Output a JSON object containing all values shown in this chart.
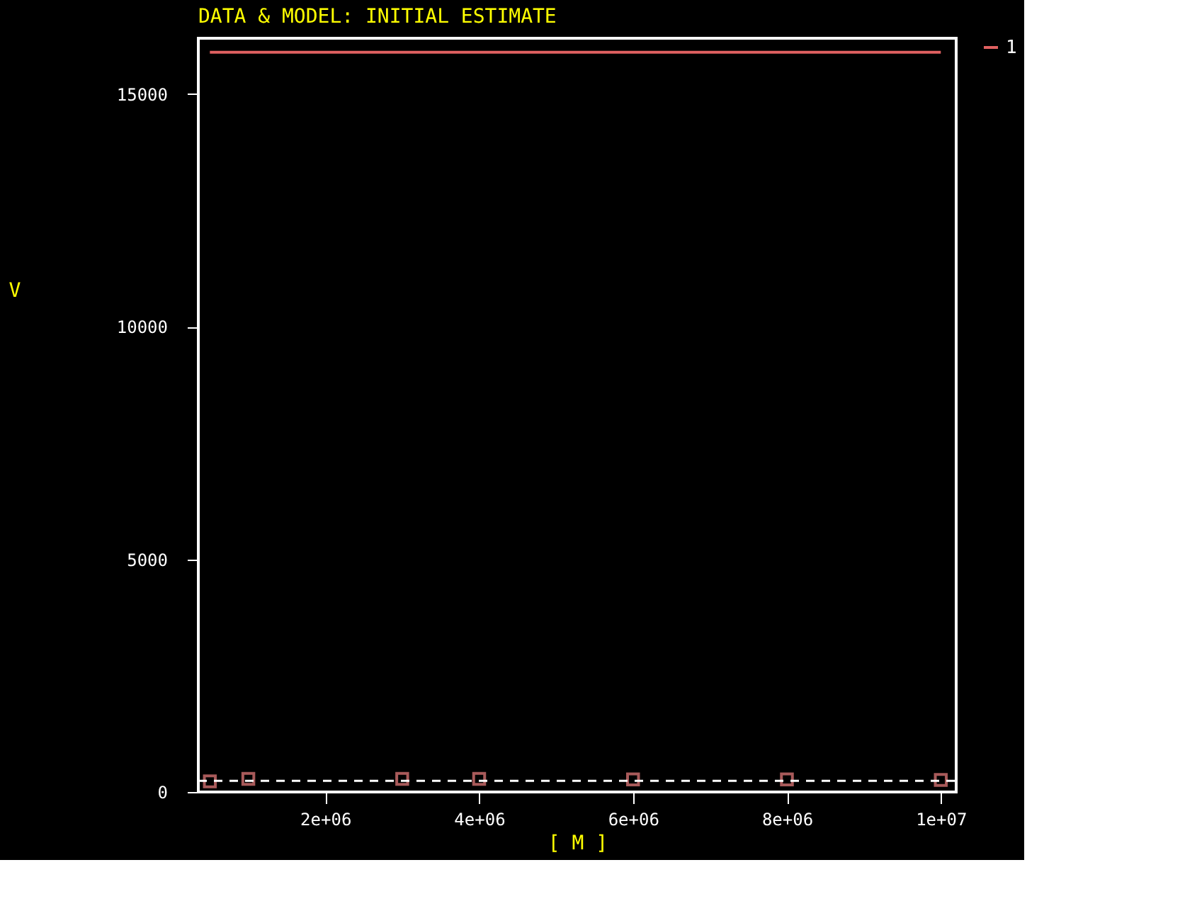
{
  "chart_data": {
    "type": "scatter",
    "title": "DATA & MODEL: INITIAL ESTIMATE",
    "xlabel": "[ M ]",
    "ylabel": "V",
    "xlim": [
      350000,
      10200000
    ],
    "ylim": [
      0,
      16200
    ],
    "xticks": [
      {
        "value": 2000000,
        "label": "2e+06"
      },
      {
        "value": 4000000,
        "label": "4e+06"
      },
      {
        "value": 6000000,
        "label": "6e+06"
      },
      {
        "value": 8000000,
        "label": "8e+06"
      },
      {
        "value": 10000000,
        "label": "1e+07"
      }
    ],
    "yticks": [
      0,
      5000,
      10000,
      15000
    ],
    "grid": false,
    "legend": "top right",
    "series": [
      {
        "marker": "square",
        "color": "#f08080",
        "x": [
          500000,
          1000000,
          3000000,
          4000000,
          6000000,
          8000000,
          10000000
        ],
        "values": [
          230,
          280,
          280,
          280,
          270,
          270,
          260
        ]
      },
      {
        "type": "line",
        "name": "1",
        "color": "#e06060",
        "x": [
          500000,
          10000000
        ],
        "values": [
          15900,
          15900
        ]
      },
      {
        "type": "line",
        "color": "#ffffff",
        "line_style": "dashed",
        "x": [
          350000,
          10200000
        ],
        "values": [
          240,
          240
        ]
      }
    ]
  }
}
